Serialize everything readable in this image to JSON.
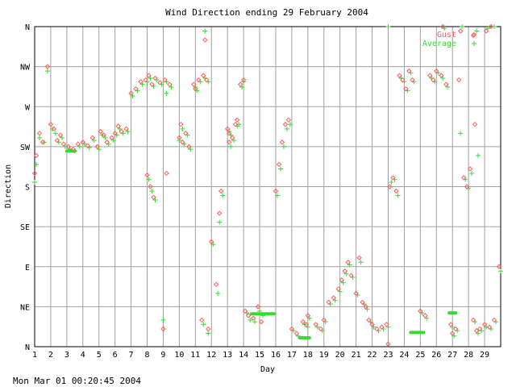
{
  "chart_data": {
    "type": "scatter",
    "title": "Wind Direction ending 29 February 2004",
    "xlabel": "Day",
    "ylabel": "Direction",
    "footer": "Mon Mar 01 00:20:45 2004",
    "x_ticks": [
      "1",
      "2",
      "3",
      "4",
      "5",
      "6",
      "7",
      "8",
      "9",
      "10",
      "11",
      "12",
      "13",
      "14",
      "15",
      "16",
      "17",
      "18",
      "19",
      "20",
      "21",
      "22",
      "23",
      "24",
      "25",
      "26",
      "27",
      "28",
      "29"
    ],
    "y_ticks": [
      "N",
      "NE",
      "E",
      "SE",
      "S",
      "SW",
      "W",
      "NW",
      "N"
    ],
    "xlim": [
      1,
      30
    ],
    "ylim": [
      0,
      360
    ],
    "grid": true,
    "legend": "top-right",
    "colors": {
      "gust": "#ff5c5c",
      "average": "#33dd33"
    },
    "series": [
      {
        "name": "Gust",
        "marker": "diamond",
        "points": [
          [
            1.0,
            195
          ],
          [
            1.1,
            215
          ],
          [
            1.3,
            240
          ],
          [
            1.5,
            230
          ],
          [
            1.8,
            315
          ],
          [
            2.0,
            250
          ],
          [
            2.2,
            245
          ],
          [
            2.4,
            232
          ],
          [
            2.6,
            238
          ],
          [
            2.8,
            228
          ],
          [
            3.1,
            225
          ],
          [
            3.4,
            222
          ],
          [
            3.7,
            228
          ],
          [
            4.0,
            230
          ],
          [
            4.3,
            226
          ],
          [
            4.6,
            235
          ],
          [
            4.9,
            225
          ],
          [
            5.1,
            242
          ],
          [
            5.3,
            238
          ],
          [
            5.5,
            230
          ],
          [
            5.8,
            235
          ],
          [
            6.0,
            240
          ],
          [
            6.2,
            248
          ],
          [
            6.4,
            242
          ],
          [
            6.7,
            245
          ],
          [
            7.0,
            285
          ],
          [
            7.3,
            290
          ],
          [
            7.6,
            298
          ],
          [
            7.9,
            300
          ],
          [
            8.1,
            305
          ],
          [
            8.3,
            295
          ],
          [
            8.5,
            302
          ],
          [
            8.8,
            297
          ],
          [
            9.1,
            300
          ],
          [
            9.4,
            295
          ],
          [
            8.0,
            193
          ],
          [
            8.2,
            180
          ],
          [
            8.4,
            168
          ],
          [
            9.0,
            20
          ],
          [
            9.2,
            195
          ],
          [
            10.0,
            235
          ],
          [
            10.1,
            250
          ],
          [
            10.2,
            230
          ],
          [
            10.4,
            240
          ],
          [
            10.6,
            225
          ],
          [
            10.9,
            295
          ],
          [
            11.0,
            290
          ],
          [
            11.2,
            300
          ],
          [
            11.5,
            305
          ],
          [
            11.7,
            300
          ],
          [
            11.4,
            30
          ],
          [
            11.8,
            20
          ],
          [
            11.6,
            345
          ],
          [
            12.0,
            118
          ],
          [
            12.3,
            70
          ],
          [
            12.5,
            150
          ],
          [
            12.6,
            175
          ],
          [
            13.0,
            245
          ],
          [
            13.1,
            240
          ],
          [
            13.3,
            235
          ],
          [
            13.5,
            250
          ],
          [
            13.6,
            255
          ],
          [
            13.8,
            295
          ],
          [
            14.0,
            300
          ],
          [
            13.1,
            230
          ],
          [
            14.1,
            40
          ],
          [
            14.3,
            35
          ],
          [
            14.6,
            32
          ],
          [
            15.1,
            28
          ],
          [
            14.9,
            45
          ],
          [
            16.0,
            175
          ],
          [
            16.2,
            205
          ],
          [
            16.4,
            230
          ],
          [
            16.6,
            250
          ],
          [
            16.8,
            255
          ],
          [
            17.0,
            20
          ],
          [
            17.3,
            15
          ],
          [
            17.7,
            28
          ],
          [
            18.0,
            35
          ],
          [
            17.9,
            25
          ],
          [
            18.5,
            25
          ],
          [
            18.8,
            20
          ],
          [
            19.0,
            30
          ],
          [
            19.3,
            50
          ],
          [
            19.6,
            55
          ],
          [
            19.9,
            65
          ],
          [
            20.1,
            75
          ],
          [
            20.3,
            85
          ],
          [
            20.5,
            95
          ],
          [
            20.7,
            80
          ],
          [
            21.0,
            60
          ],
          [
            21.2,
            100
          ],
          [
            21.4,
            50
          ],
          [
            21.6,
            45
          ],
          [
            21.8,
            30
          ],
          [
            22.0,
            25
          ],
          [
            22.3,
            20
          ],
          [
            22.6,
            22
          ],
          [
            22.9,
            25
          ],
          [
            23.0,
            3
          ],
          [
            23.1,
            180
          ],
          [
            23.3,
            190
          ],
          [
            23.5,
            175
          ],
          [
            23.7,
            305
          ],
          [
            23.9,
            300
          ],
          [
            24.1,
            290
          ],
          [
            24.3,
            310
          ],
          [
            24.5,
            300
          ],
          [
            25.0,
            40
          ],
          [
            25.3,
            35
          ],
          [
            25.6,
            305
          ],
          [
            25.8,
            300
          ],
          [
            26.0,
            310
          ],
          [
            26.3,
            305
          ],
          [
            26.6,
            295
          ],
          [
            26.9,
            25
          ],
          [
            27.0,
            15
          ],
          [
            27.2,
            20
          ],
          [
            27.4,
            300
          ],
          [
            27.7,
            190
          ],
          [
            27.9,
            180
          ],
          [
            28.1,
            200
          ],
          [
            28.3,
            30
          ],
          [
            28.5,
            18
          ],
          [
            28.7,
            20
          ],
          [
            29.0,
            25
          ],
          [
            29.3,
            22
          ],
          [
            29.6,
            30
          ],
          [
            29.9,
            90
          ],
          [
            27.5,
            355
          ],
          [
            28.3,
            350
          ],
          [
            29.1,
            355
          ],
          [
            29.4,
            360
          ],
          [
            26.4,
            360
          ],
          [
            28.4,
            250
          ]
        ]
      },
      {
        "name": "Average",
        "marker": "plus",
        "points": [
          [
            1.0,
            185
          ],
          [
            1.1,
            205
          ],
          [
            1.3,
            235
          ],
          [
            1.6,
            230
          ],
          [
            1.8,
            310
          ],
          [
            2.1,
            245
          ],
          [
            2.3,
            240
          ],
          [
            2.5,
            230
          ],
          [
            2.7,
            235
          ],
          [
            2.9,
            225
          ],
          [
            3.2,
            222
          ],
          [
            3.5,
            220
          ],
          [
            3.8,
            225
          ],
          [
            4.1,
            228
          ],
          [
            4.4,
            224
          ],
          [
            4.7,
            232
          ],
          [
            5.0,
            222
          ],
          [
            5.2,
            238
          ],
          [
            5.4,
            235
          ],
          [
            5.6,
            228
          ],
          [
            5.9,
            232
          ],
          [
            6.1,
            238
          ],
          [
            6.3,
            245
          ],
          [
            6.5,
            240
          ],
          [
            6.8,
            242
          ],
          [
            7.1,
            282
          ],
          [
            7.4,
            288
          ],
          [
            7.7,
            295
          ],
          [
            8.0,
            298
          ],
          [
            8.2,
            302
          ],
          [
            8.4,
            293
          ],
          [
            8.6,
            300
          ],
          [
            8.9,
            295
          ],
          [
            9.2,
            298
          ],
          [
            9.5,
            292
          ],
          [
            8.1,
            188
          ],
          [
            8.3,
            175
          ],
          [
            8.5,
            165
          ],
          [
            9.0,
            30
          ],
          [
            9.2,
            285
          ],
          [
            10.0,
            232
          ],
          [
            10.2,
            245
          ],
          [
            10.3,
            228
          ],
          [
            10.5,
            238
          ],
          [
            10.7,
            222
          ],
          [
            11.0,
            292
          ],
          [
            11.1,
            288
          ],
          [
            11.3,
            298
          ],
          [
            11.6,
            302
          ],
          [
            11.8,
            298
          ],
          [
            11.5,
            25
          ],
          [
            11.8,
            15
          ],
          [
            11.6,
            355
          ],
          [
            12.1,
            115
          ],
          [
            12.4,
            60
          ],
          [
            12.5,
            140
          ],
          [
            12.7,
            170
          ],
          [
            13.1,
            242
          ],
          [
            13.2,
            238
          ],
          [
            13.4,
            232
          ],
          [
            13.6,
            248
          ],
          [
            13.7,
            250
          ],
          [
            13.9,
            292
          ],
          [
            14.0,
            298
          ],
          [
            13.2,
            225
          ],
          [
            14.2,
            38
          ],
          [
            14.4,
            30
          ],
          [
            14.7,
            28
          ],
          [
            15.2,
            35
          ],
          [
            15.0,
            40
          ],
          [
            16.1,
            170
          ],
          [
            16.3,
            200
          ],
          [
            16.5,
            225
          ],
          [
            16.7,
            245
          ],
          [
            16.9,
            250
          ],
          [
            17.1,
            18
          ],
          [
            17.4,
            12
          ],
          [
            17.8,
            25
          ],
          [
            18.1,
            32
          ],
          [
            18.0,
            22
          ],
          [
            18.6,
            22
          ],
          [
            18.9,
            18
          ],
          [
            19.1,
            28
          ],
          [
            19.4,
            48
          ],
          [
            19.7,
            52
          ],
          [
            20.0,
            62
          ],
          [
            20.2,
            72
          ],
          [
            20.4,
            82
          ],
          [
            20.6,
            92
          ],
          [
            20.8,
            78
          ],
          [
            21.1,
            58
          ],
          [
            21.3,
            95
          ],
          [
            21.5,
            48
          ],
          [
            21.7,
            42
          ],
          [
            21.9,
            28
          ],
          [
            22.1,
            22
          ],
          [
            22.4,
            18
          ],
          [
            22.7,
            20
          ],
          [
            23.0,
            22
          ],
          [
            23.0,
            360
          ],
          [
            23.2,
            185
          ],
          [
            23.4,
            188
          ],
          [
            23.6,
            170
          ],
          [
            23.8,
            302
          ],
          [
            24.0,
            298
          ],
          [
            24.2,
            288
          ],
          [
            24.4,
            308
          ],
          [
            24.6,
            298
          ],
          [
            25.1,
            38
          ],
          [
            25.4,
            32
          ],
          [
            25.7,
            302
          ],
          [
            25.9,
            298
          ],
          [
            26.1,
            308
          ],
          [
            26.4,
            302
          ],
          [
            26.7,
            292
          ],
          [
            27.0,
            22
          ],
          [
            27.1,
            12
          ],
          [
            27.3,
            18
          ],
          [
            27.5,
            240
          ],
          [
            27.8,
            188
          ],
          [
            28.0,
            178
          ],
          [
            28.2,
            195
          ],
          [
            28.4,
            28
          ],
          [
            28.6,
            15
          ],
          [
            28.8,
            18
          ],
          [
            29.1,
            22
          ],
          [
            29.4,
            20
          ],
          [
            29.7,
            28
          ],
          [
            30.0,
            85
          ],
          [
            27.6,
            360
          ],
          [
            28.5,
            355
          ],
          [
            29.2,
            358
          ],
          [
            29.6,
            360
          ],
          [
            26.5,
            358
          ],
          [
            28.6,
            215
          ]
        ]
      }
    ],
    "clusters": [
      {
        "series": "Average",
        "x_start": 3.0,
        "x_end": 3.5,
        "y": 220
      },
      {
        "series": "Average",
        "x_start": 14.5,
        "x_end": 15.9,
        "y": 37
      },
      {
        "series": "Average",
        "x_start": 17.5,
        "x_end": 18.1,
        "y": 10
      },
      {
        "series": "Average",
        "x_start": 24.4,
        "x_end": 25.2,
        "y": 16
      },
      {
        "series": "Average",
        "x_start": 26.8,
        "x_end": 27.2,
        "y": 38
      }
    ]
  }
}
